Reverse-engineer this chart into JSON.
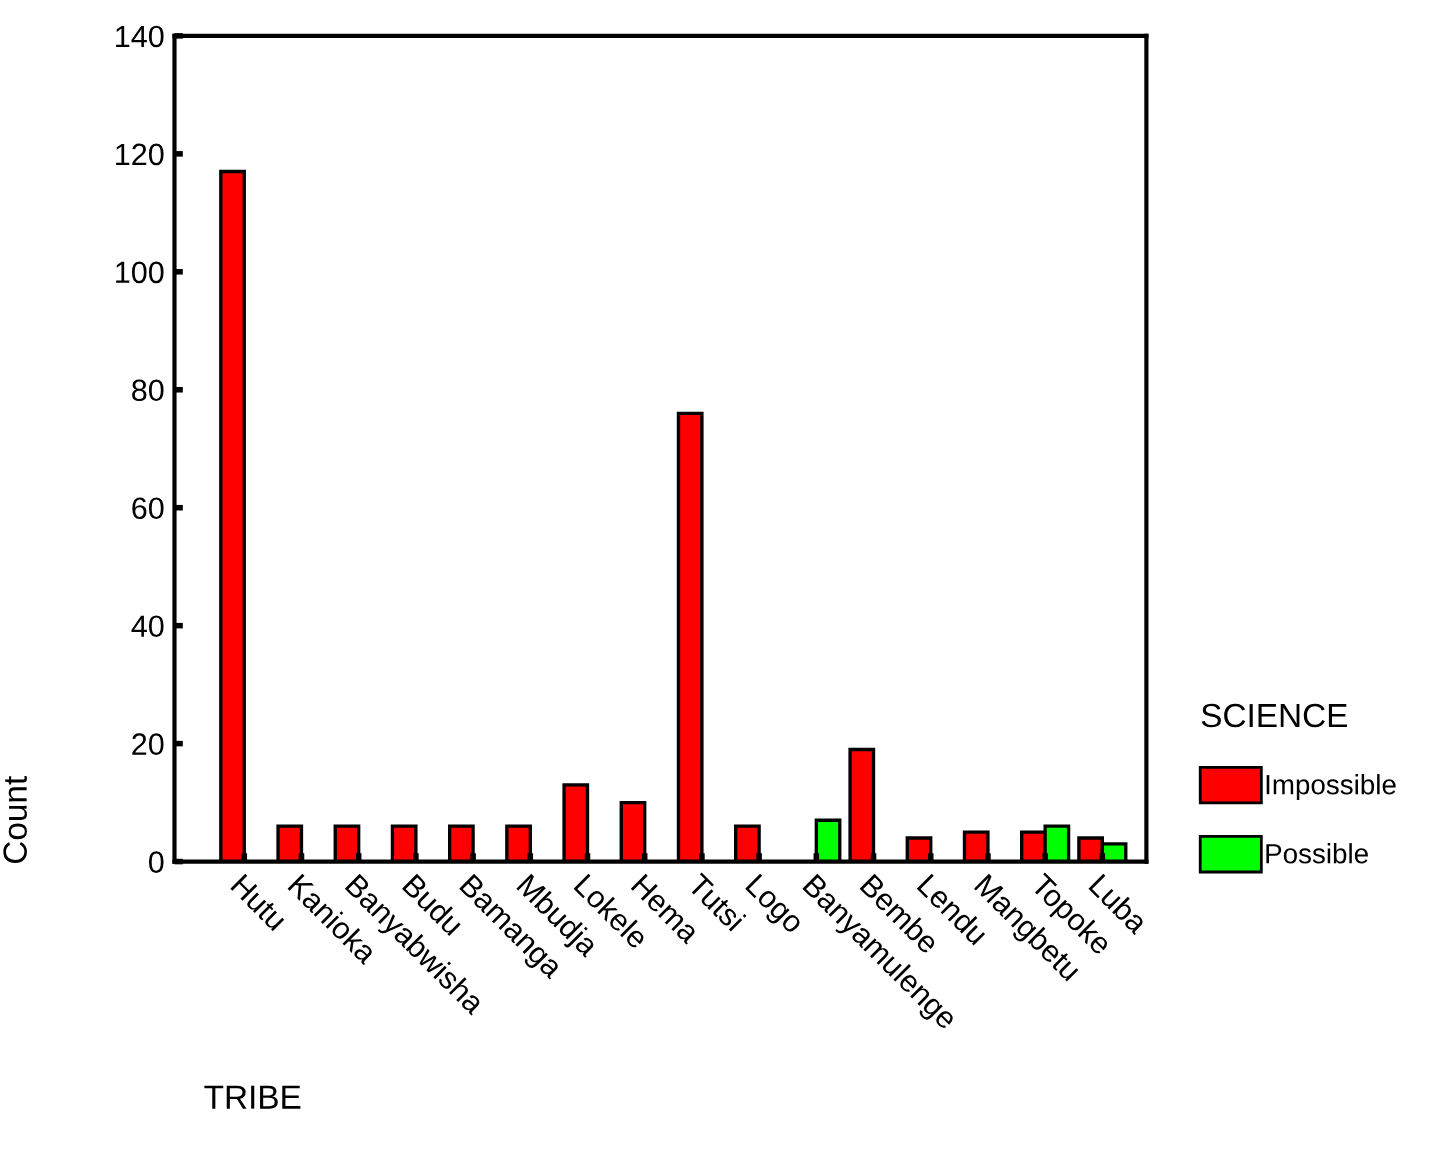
{
  "chart_data": {
    "type": "bar",
    "xlabel": "TRIBE",
    "ylabel": "Count",
    "legend_title": "SCIENCE",
    "legend": "right",
    "categories": [
      "Hutu",
      "Kanioka",
      "Banyabwisha",
      "Budu",
      "Bamanga",
      "Mbudja",
      "Lokele",
      "Hema",
      "Tutsi",
      "Logo",
      "Banyamulenge",
      "Bembe",
      "Lendu",
      "Mangbetu",
      "Topoke",
      "Luba"
    ],
    "series": [
      {
        "name": "Impossible",
        "color": "#ff0000",
        "values": [
          117,
          6,
          6,
          6,
          6,
          6,
          13,
          10,
          76,
          6,
          null,
          19,
          4,
          5,
          5,
          4
        ]
      },
      {
        "name": "Possible",
        "color": "#00ff00",
        "values": [
          null,
          null,
          null,
          null,
          null,
          null,
          null,
          null,
          null,
          null,
          7,
          null,
          null,
          null,
          6,
          3
        ]
      }
    ],
    "ylim": [
      0,
      140
    ],
    "yticks": [
      0,
      20,
      40,
      60,
      80,
      100,
      120,
      140
    ],
    "grid": false
  }
}
